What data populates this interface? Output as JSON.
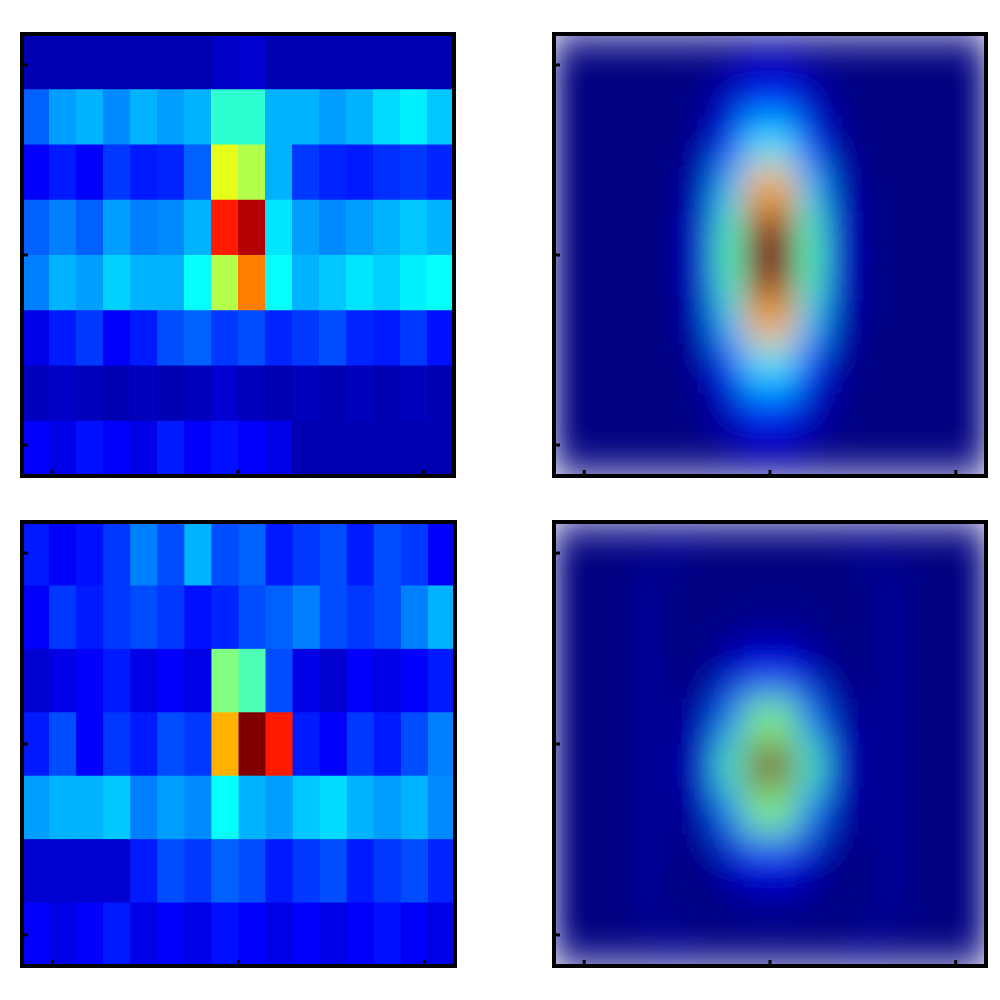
{
  "chart_data": [
    {
      "type": "heatmap",
      "colormap": "jet",
      "interpolation": "nearest",
      "values": [
        [
          0.05,
          0.05,
          0.05,
          0.05,
          0.05,
          0.05,
          0.05,
          0.07,
          0.08,
          0.05,
          0.05,
          0.05,
          0.05,
          0.05,
          0.05,
          0.05
        ],
        [
          0.22,
          0.28,
          0.3,
          0.26,
          0.3,
          0.28,
          0.3,
          0.42,
          0.42,
          0.3,
          0.3,
          0.28,
          0.3,
          0.34,
          0.36,
          0.32
        ],
        [
          0.12,
          0.15,
          0.12,
          0.18,
          0.15,
          0.16,
          0.22,
          0.6,
          0.55,
          0.3,
          0.18,
          0.16,
          0.15,
          0.17,
          0.18,
          0.16
        ],
        [
          0.22,
          0.25,
          0.22,
          0.28,
          0.25,
          0.26,
          0.3,
          0.85,
          0.95,
          0.35,
          0.28,
          0.26,
          0.28,
          0.3,
          0.32,
          0.3
        ],
        [
          0.25,
          0.3,
          0.28,
          0.33,
          0.3,
          0.3,
          0.38,
          0.55,
          0.75,
          0.38,
          0.3,
          0.32,
          0.35,
          0.33,
          0.36,
          0.38
        ],
        [
          0.1,
          0.15,
          0.18,
          0.12,
          0.15,
          0.2,
          0.22,
          0.18,
          0.2,
          0.16,
          0.18,
          0.2,
          0.16,
          0.15,
          0.18,
          0.14
        ],
        [
          0.06,
          0.07,
          0.06,
          0.05,
          0.06,
          0.05,
          0.06,
          0.08,
          0.06,
          0.05,
          0.06,
          0.05,
          0.06,
          0.05,
          0.06,
          0.05
        ],
        [
          0.12,
          0.1,
          0.14,
          0.12,
          0.1,
          0.15,
          0.12,
          0.14,
          0.12,
          0.1,
          0.05,
          0.05,
          0.05,
          0.05,
          0.05,
          0.05
        ]
      ]
    },
    {
      "type": "heatmap",
      "colormap": "jet",
      "interpolation": "bilinear",
      "values": [
        [
          0,
          0,
          0,
          0,
          0,
          0,
          0.01,
          0.03,
          0.03,
          0.01,
          0,
          0,
          0,
          0,
          0,
          0
        ],
        [
          0,
          0,
          0,
          0,
          0,
          0.01,
          0.06,
          0.13,
          0.13,
          0.06,
          0.01,
          0,
          0,
          0,
          0,
          0
        ],
        [
          0,
          0,
          0,
          0,
          0,
          0.03,
          0.16,
          0.35,
          0.35,
          0.16,
          0.03,
          0,
          0,
          0,
          0,
          0
        ],
        [
          0,
          0,
          0,
          0,
          0.01,
          0.06,
          0.32,
          0.71,
          0.71,
          0.32,
          0.06,
          0.01,
          0,
          0,
          0,
          0
        ],
        [
          0,
          0,
          0,
          0,
          0.01,
          0.09,
          0.45,
          1,
          1,
          0.45,
          0.09,
          0.01,
          0,
          0,
          0,
          0
        ],
        [
          0,
          0,
          0,
          0,
          0.01,
          0.09,
          0.45,
          1,
          1,
          0.45,
          0.09,
          0.01,
          0,
          0,
          0,
          0
        ],
        [
          0,
          0,
          0,
          0,
          0.01,
          0.06,
          0.32,
          0.71,
          0.71,
          0.32,
          0.06,
          0.01,
          0,
          0,
          0,
          0
        ],
        [
          0,
          0,
          0,
          0,
          0,
          0.03,
          0.16,
          0.35,
          0.35,
          0.16,
          0.03,
          0,
          0,
          0,
          0,
          0
        ],
        [
          0,
          0,
          0,
          0,
          0,
          0.01,
          0.06,
          0.13,
          0.13,
          0.06,
          0.01,
          0,
          0,
          0,
          0,
          0
        ],
        [
          0,
          0,
          0,
          0,
          0,
          0,
          0.01,
          0.03,
          0.03,
          0.01,
          0,
          0,
          0,
          0,
          0,
          0
        ]
      ]
    },
    {
      "type": "heatmap",
      "colormap": "jet",
      "interpolation": "nearest",
      "values": [
        [
          0.15,
          0.12,
          0.14,
          0.18,
          0.25,
          0.2,
          0.3,
          0.2,
          0.22,
          0.15,
          0.18,
          0.2,
          0.15,
          0.2,
          0.18,
          0.12
        ],
        [
          0.12,
          0.18,
          0.15,
          0.18,
          0.2,
          0.18,
          0.14,
          0.16,
          0.2,
          0.22,
          0.25,
          0.2,
          0.18,
          0.2,
          0.25,
          0.3
        ],
        [
          0.08,
          0.1,
          0.12,
          0.15,
          0.1,
          0.12,
          0.1,
          0.5,
          0.45,
          0.2,
          0.1,
          0.08,
          0.12,
          0.1,
          0.12,
          0.15
        ],
        [
          0.15,
          0.2,
          0.12,
          0.18,
          0.15,
          0.2,
          0.18,
          0.7,
          1,
          0.85,
          0.15,
          0.12,
          0.18,
          0.15,
          0.2,
          0.25
        ],
        [
          0.28,
          0.3,
          0.3,
          0.32,
          0.25,
          0.28,
          0.26,
          0.38,
          0.3,
          0.28,
          0.32,
          0.34,
          0.3,
          0.28,
          0.3,
          0.26
        ],
        [
          0.08,
          0.08,
          0.08,
          0.08,
          0.15,
          0.2,
          0.18,
          0.22,
          0.2,
          0.15,
          0.18,
          0.2,
          0.15,
          0.18,
          0.2,
          0.16
        ],
        [
          0.12,
          0.1,
          0.12,
          0.15,
          0.1,
          0.12,
          0.1,
          0.14,
          0.12,
          0.1,
          0.12,
          0.1,
          0.12,
          0.14,
          0.12,
          0.1
        ]
      ]
    },
    {
      "type": "heatmap",
      "colormap": "jet",
      "interpolation": "bilinear",
      "values": [
        [
          0,
          0,
          0,
          0,
          0.02,
          0,
          0,
          0,
          0,
          0,
          0,
          0.02,
          0,
          0,
          0,
          0
        ],
        [
          0,
          0,
          0,
          0.03,
          0,
          0,
          0,
          0,
          0,
          0,
          0,
          0,
          0.03,
          0,
          0,
          0
        ],
        [
          0,
          0,
          0,
          0.03,
          0,
          0,
          0.01,
          0.02,
          0.02,
          0.01,
          0,
          0,
          0.03,
          0,
          0,
          0
        ],
        [
          0,
          0,
          0,
          0.03,
          0,
          0.01,
          0.07,
          0.14,
          0.14,
          0.07,
          0.01,
          0,
          0.03,
          0,
          0,
          0
        ],
        [
          0,
          0,
          0,
          0.03,
          0.01,
          0.05,
          0.25,
          0.5,
          0.5,
          0.25,
          0.05,
          0.01,
          0.03,
          0,
          0,
          0
        ],
        [
          0,
          0,
          0,
          0.03,
          0.01,
          0.09,
          0.45,
          1,
          1,
          0.45,
          0.09,
          0.01,
          0.03,
          0,
          0,
          0
        ],
        [
          0,
          0,
          0,
          0.03,
          0.01,
          0.05,
          0.25,
          0.5,
          0.5,
          0.25,
          0.05,
          0.01,
          0.03,
          0,
          0,
          0
        ],
        [
          0,
          0,
          0,
          0.03,
          0,
          0.01,
          0.07,
          0.14,
          0.14,
          0.07,
          0.01,
          0,
          0.03,
          0,
          0,
          0
        ],
        [
          0,
          0,
          0,
          0.03,
          0,
          0,
          0.01,
          0.02,
          0.02,
          0.01,
          0,
          0,
          0.03,
          0,
          0,
          0
        ],
        [
          0,
          0,
          0,
          0,
          0.02,
          0,
          0,
          0,
          0,
          0,
          0,
          0.02,
          0,
          0,
          0,
          0
        ]
      ]
    }
  ]
}
